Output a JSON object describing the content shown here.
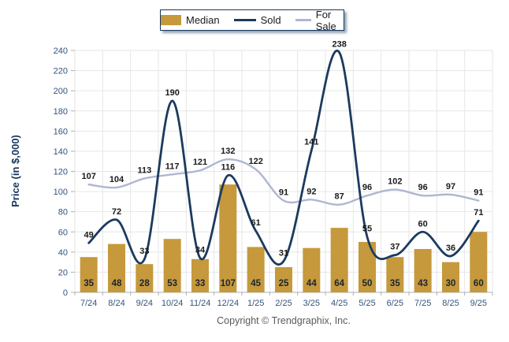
{
  "legend": {
    "items": [
      {
        "label": "Median",
        "swatch": "bar-swatch-gold"
      },
      {
        "label": "Sold",
        "swatch": "line-swatch-navy"
      },
      {
        "label": "For Sale",
        "swatch": "line-swatch-lightblue"
      }
    ]
  },
  "footer": {
    "copyright": "Copyright © Trendgraphix, Inc."
  },
  "colors": {
    "median_bar": "#C5993C",
    "sold_line": "#1B3A5F",
    "forsale_line": "#AEB7CE",
    "axis_label": "#33547C",
    "data_label": "#1a1a1a",
    "bar_label": "#1A2433",
    "gridline": "#E6E6E6",
    "axis_line": "#B0B0B0"
  },
  "chart_data": {
    "type": "bar",
    "subtype": "combo-bar-line",
    "title": "",
    "xlabel": "",
    "ylabel": "Price (in $,000)",
    "ylim": [
      0,
      240
    ],
    "ytick_step": 20,
    "grid": true,
    "legend_position": "top-center",
    "categories": [
      "7/24",
      "8/24",
      "9/24",
      "10/24",
      "11/24",
      "12/24",
      "1/25",
      "2/25",
      "3/25",
      "4/25",
      "5/25",
      "6/25",
      "7/25",
      "8/25",
      "9/25"
    ],
    "series": [
      {
        "name": "Median",
        "type": "bar",
        "color": "#C5993C",
        "values": [
          35,
          48,
          28,
          53,
          33,
          107,
          45,
          25,
          44,
          64,
          50,
          35,
          43,
          30,
          60
        ]
      },
      {
        "name": "Sold",
        "type": "line",
        "color": "#1B3A5F",
        "values": [
          49,
          72,
          33,
          190,
          34,
          116,
          61,
          31,
          141,
          238,
          55,
          37,
          60,
          36,
          71
        ]
      },
      {
        "name": "For Sale",
        "type": "line",
        "color": "#AEB7CE",
        "values": [
          107,
          104,
          113,
          117,
          121,
          132,
          122,
          91,
          92,
          87,
          96,
          102,
          96,
          97,
          91
        ]
      }
    ]
  }
}
